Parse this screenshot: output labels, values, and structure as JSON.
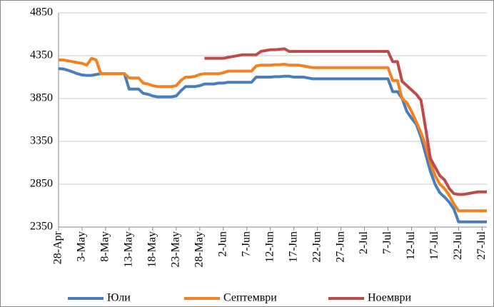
{
  "chart_data": {
    "type": "line",
    "categories": [
      "28-Apr",
      null,
      null,
      null,
      null,
      "3-May",
      null,
      null,
      null,
      null,
      "8-May",
      null,
      null,
      null,
      null,
      "13-May",
      null,
      null,
      null,
      null,
      "18-May",
      null,
      null,
      null,
      null,
      "23-May",
      null,
      null,
      null,
      null,
      "28-May",
      null,
      null,
      null,
      null,
      "2-Jun",
      null,
      null,
      null,
      null,
      "7-Jun",
      null,
      null,
      null,
      null,
      "12-Jun",
      null,
      null,
      null,
      null,
      "17-Jun",
      null,
      null,
      null,
      null,
      "22-Jun",
      null,
      null,
      null,
      null,
      "27-Jun",
      null,
      null,
      null,
      null,
      "2-Jul",
      null,
      null,
      null,
      null,
      "7-Jul",
      null,
      null,
      null,
      null,
      "12-Jul",
      null,
      null,
      null,
      null,
      "17-Jul",
      null,
      null,
      null,
      null,
      "22-Jul",
      null,
      null,
      null,
      null,
      "27-Jul",
      null
    ],
    "series": [
      {
        "name": "Юли",
        "color": "#4a7ebb",
        "values": [
          4200,
          4195,
          4180,
          4160,
          4140,
          4125,
          4120,
          4120,
          4130,
          4140,
          4140,
          4140,
          4140,
          4140,
          4140,
          3960,
          3960,
          3960,
          3910,
          3900,
          3880,
          3870,
          3870,
          3870,
          3870,
          3880,
          3940,
          3990,
          3990,
          3990,
          4000,
          4020,
          4020,
          4020,
          4030,
          4030,
          4040,
          4040,
          4040,
          4040,
          4040,
          4040,
          4100,
          4100,
          4100,
          4100,
          4105,
          4105,
          4110,
          4110,
          4100,
          4100,
          4100,
          4090,
          4080,
          4080,
          4080,
          4080,
          4080,
          4080,
          4080,
          4080,
          4080,
          4080,
          4080,
          4080,
          4080,
          4080,
          4080,
          4080,
          4080,
          3930,
          3930,
          3850,
          3700,
          3620,
          3550,
          3400,
          3200,
          3000,
          2850,
          2750,
          2700,
          2640,
          2560,
          2410,
          2410,
          2410,
          2410,
          2410,
          2410,
          2410
        ]
      },
      {
        "name": "Септември",
        "color": "#f3811f",
        "values": [
          4300,
          4300,
          4290,
          4280,
          4270,
          4260,
          4240,
          4320,
          4300,
          4140,
          4140,
          4140,
          4140,
          4140,
          4140,
          4090,
          4090,
          4090,
          4030,
          4020,
          4000,
          3990,
          3990,
          3990,
          3990,
          4000,
          4060,
          4100,
          4100,
          4110,
          4130,
          4140,
          4140,
          4140,
          4140,
          4150,
          4170,
          4170,
          4170,
          4170,
          4170,
          4170,
          4230,
          4240,
          4240,
          4240,
          4245,
          4245,
          4250,
          4240,
          4240,
          4240,
          4230,
          4220,
          4210,
          4210,
          4210,
          4210,
          4210,
          4210,
          4210,
          4210,
          4210,
          4210,
          4210,
          4210,
          4210,
          4210,
          4210,
          4210,
          4210,
          4060,
          4060,
          3850,
          3800,
          3700,
          3580,
          3450,
          3300,
          3100,
          2950,
          2850,
          2800,
          2720,
          2620,
          2540,
          2540,
          2540,
          2540,
          2540,
          2540,
          2540
        ]
      },
      {
        "name": "Ноември",
        "color": "#be4b48",
        "values": [
          null,
          null,
          null,
          null,
          null,
          null,
          null,
          null,
          null,
          null,
          null,
          null,
          null,
          null,
          null,
          null,
          null,
          null,
          null,
          null,
          null,
          null,
          null,
          null,
          null,
          null,
          null,
          null,
          null,
          null,
          null,
          4320,
          4320,
          4320,
          4320,
          4320,
          4330,
          4340,
          4350,
          4360,
          4360,
          4360,
          4360,
          4400,
          4410,
          4420,
          4420,
          4425,
          4430,
          4400,
          4400,
          4400,
          4400,
          4400,
          4400,
          4400,
          4400,
          4400,
          4400,
          4400,
          4400,
          4400,
          4400,
          4400,
          4400,
          4400,
          4400,
          4400,
          4400,
          4400,
          4400,
          4280,
          4280,
          4050,
          4000,
          3950,
          3900,
          3830,
          3500,
          3150,
          3050,
          2950,
          2900,
          2800,
          2740,
          2730,
          2730,
          2740,
          2750,
          2760,
          2760,
          2760
        ]
      }
    ],
    "ylim": [
      2350,
      4850
    ],
    "yticks": [
      2350,
      2850,
      3350,
      3850,
      4350,
      4850
    ],
    "grid": true,
    "legend": "bottom"
  }
}
